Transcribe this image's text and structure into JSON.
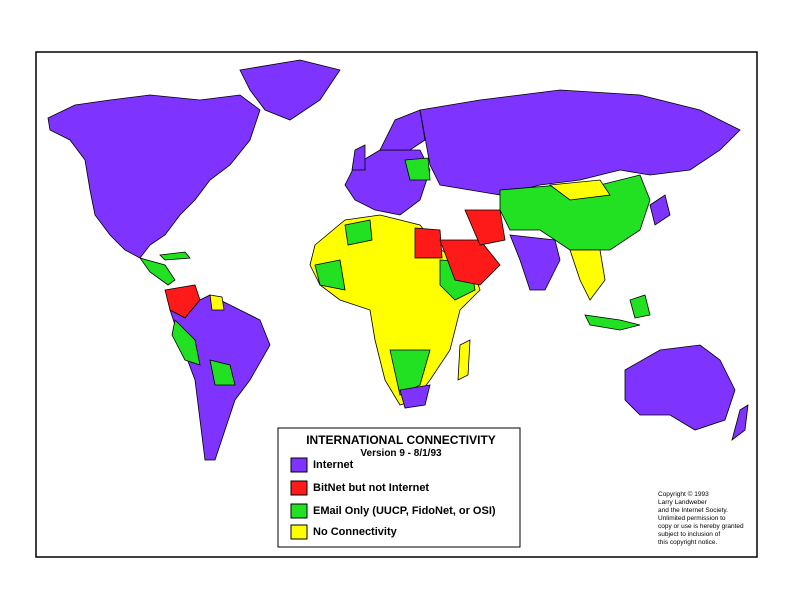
{
  "legend": {
    "title": "INTERNATIONAL CONNECTIVITY",
    "subtitle": "Version 9 - 8/1/93",
    "items": [
      {
        "label": "Internet",
        "color": "#7f33ff"
      },
      {
        "label": "BitNet but not Internet",
        "color": "#ff1a1a"
      },
      {
        "label": "EMail Only (UUCP, FidoNet, or OSI)",
        "color": "#22e022"
      },
      {
        "label": "No Connectivity",
        "color": "#ffff00"
      }
    ]
  },
  "copyright": [
    "Copyright © 1993",
    "Larry Landweber",
    "and the Internet Society.",
    "Unlimited permission to",
    "copy or use is hereby granted",
    "subject to inclusion of",
    "this copyright notice."
  ]
}
